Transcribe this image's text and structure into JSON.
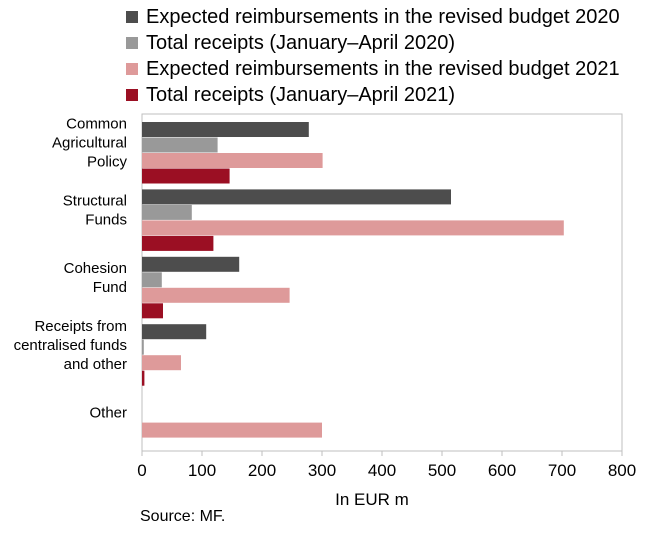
{
  "chart_data": {
    "type": "bar",
    "orientation": "horizontal",
    "categories": [
      [
        "Common",
        "Agricultural",
        "Policy"
      ],
      [
        "Structural",
        "Funds"
      ],
      [
        "Cohesion",
        "Fund"
      ],
      [
        "Receipts from",
        "centralised funds",
        "and other"
      ],
      [
        "Other"
      ]
    ],
    "series": [
      {
        "name": "Expected reimbursements in the revised budget 2020",
        "color": "#4d4d4d",
        "values": [
          278,
          515,
          162,
          107,
          0
        ]
      },
      {
        "name": "Total receipts (January–April 2020)",
        "color": "#999999",
        "values": [
          126,
          83,
          33,
          3,
          0
        ]
      },
      {
        "name": "Expected reimbursements in the revised budget  2021",
        "color": "#de9a9a",
        "values": [
          301,
          703,
          246,
          65,
          300
        ]
      },
      {
        "name": "Total receipts (January–April 2021)",
        "color": "#9b0f23",
        "values": [
          146,
          119,
          35,
          4,
          0
        ]
      }
    ],
    "xlim": [
      0,
      800
    ],
    "xticks": [
      "0",
      "100",
      "200",
      "300",
      "400",
      "500",
      "600",
      "700",
      "800"
    ],
    "xlabel": "In EUR m",
    "grid": false,
    "legend_position": "top"
  },
  "source": "Source: MF."
}
